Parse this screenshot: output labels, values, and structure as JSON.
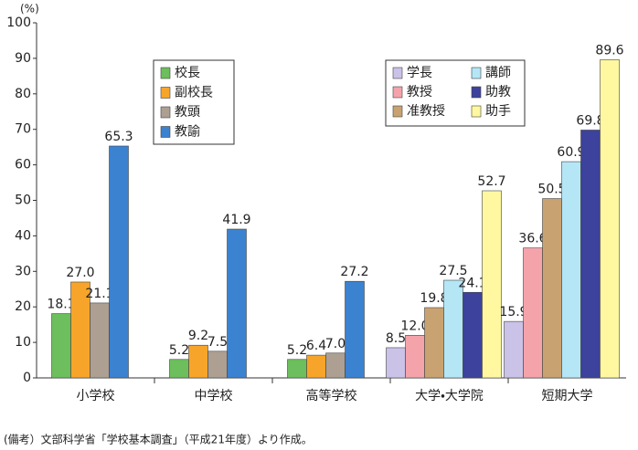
{
  "chart_data": {
    "type": "bar",
    "ylabel": "(%)",
    "note": "(備考）文部科学省「学校基本調査」（平成21年度）より作成。",
    "categories": [
      "小学校",
      "中学校",
      "高等学校",
      "大学・大学院",
      "短期大学"
    ],
    "ylim": [
      0,
      100
    ],
    "yticks": [
      0,
      10,
      20,
      30,
      40,
      50,
      60,
      70,
      80,
      90,
      100
    ],
    "series": [
      {
        "name": "校長",
        "color": "#6cbf5c",
        "values": [
          18.1,
          5.2,
          5.2,
          null,
          null
        ]
      },
      {
        "name": "副校長",
        "color": "#f6a52a",
        "values": [
          27.0,
          9.2,
          6.4,
          null,
          null
        ],
        "value_labels": [
          "27.0",
          "9.2",
          "6.4",
          null,
          null
        ]
      },
      {
        "name": "教頭",
        "color": "#ad9f92",
        "values": [
          21.1,
          7.5,
          7.0,
          null,
          null
        ],
        "value_labels": [
          "21.1",
          "7.5",
          "7.0",
          null,
          null
        ]
      },
      {
        "name": "教諭",
        "color": "#3b82d0",
        "values": [
          65.3,
          41.9,
          27.2,
          null,
          null
        ]
      },
      {
        "name": "学長",
        "color": "#cbc2e8",
        "values": [
          null,
          null,
          null,
          8.5,
          15.9
        ]
      },
      {
        "name": "教授",
        "color": "#f5a3ab",
        "values": [
          null,
          null,
          null,
          12.0,
          36.6
        ],
        "value_labels": [
          null,
          null,
          null,
          "12.0",
          "36.6"
        ]
      },
      {
        "name": "准教授",
        "color": "#c9a272",
        "values": [
          null,
          null,
          null,
          19.8,
          50.5
        ]
      },
      {
        "name": "講師",
        "color": "#b4e6f6",
        "values": [
          null,
          null,
          null,
          27.5,
          60.9
        ]
      },
      {
        "name": "助教",
        "color": "#3d429c",
        "values": [
          null,
          null,
          null,
          24.1,
          69.8
        ]
      },
      {
        "name": "助手",
        "color": "#fff8a0",
        "values": [
          null,
          null,
          null,
          52.7,
          89.6
        ]
      }
    ]
  }
}
